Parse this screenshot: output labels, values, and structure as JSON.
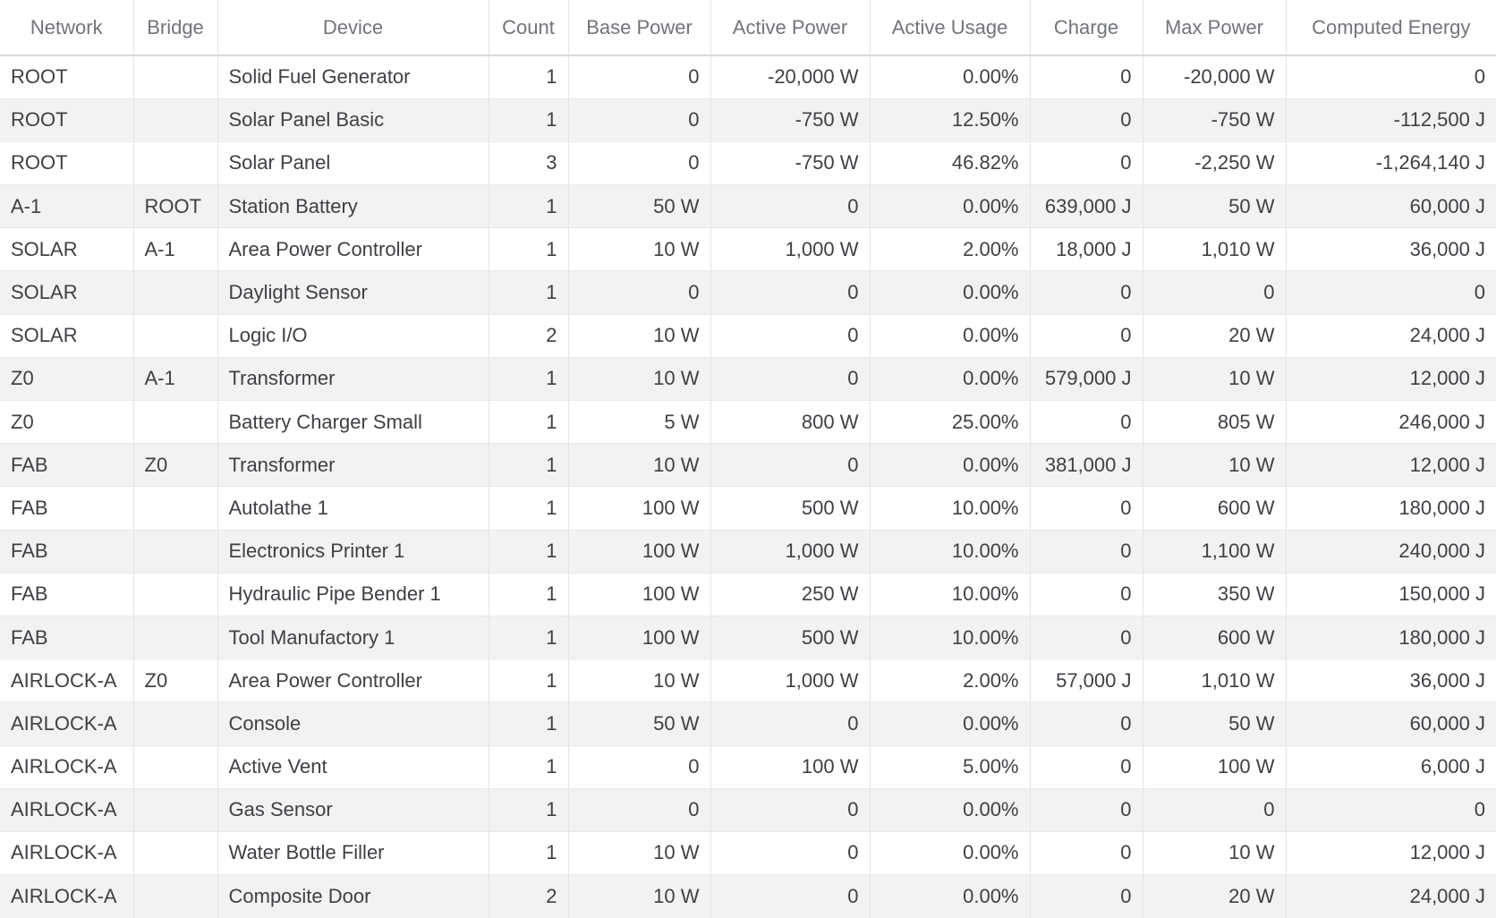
{
  "colors": {
    "stripe": "#f2f2f2",
    "divider": "#e4e4e4",
    "row_border": "#e9e9e9",
    "header_border": "#dadada",
    "header_text": "#71747b",
    "body_text": "#3e4045"
  },
  "table": {
    "columns": [
      {
        "key": "network",
        "label": "Network",
        "align": "left"
      },
      {
        "key": "bridge",
        "label": "Bridge",
        "align": "left"
      },
      {
        "key": "device",
        "label": "Device",
        "align": "left"
      },
      {
        "key": "count",
        "label": "Count",
        "align": "right"
      },
      {
        "key": "base_power",
        "label": "Base Power",
        "align": "right"
      },
      {
        "key": "active_power",
        "label": "Active Power",
        "align": "right"
      },
      {
        "key": "active_usage",
        "label": "Active Usage",
        "align": "right"
      },
      {
        "key": "charge",
        "label": "Charge",
        "align": "right"
      },
      {
        "key": "max_power",
        "label": "Max Power",
        "align": "right"
      },
      {
        "key": "computed_energy",
        "label": "Computed Energy",
        "align": "right"
      }
    ],
    "rows": [
      [
        "ROOT",
        "",
        "Solid Fuel Generator",
        "1",
        "0",
        "-20,000 W",
        "0.00%",
        "0",
        "-20,000 W",
        "0"
      ],
      [
        "ROOT",
        "",
        "Solar Panel Basic",
        "1",
        "0",
        "-750 W",
        "12.50%",
        "0",
        "-750 W",
        "-112,500 J"
      ],
      [
        "ROOT",
        "",
        "Solar Panel",
        "3",
        "0",
        "-750 W",
        "46.82%",
        "0",
        "-2,250 W",
        "-1,264,140 J"
      ],
      [
        "A-1",
        "ROOT",
        "Station Battery",
        "1",
        "50 W",
        "0",
        "0.00%",
        "639,000 J",
        "50 W",
        "60,000 J"
      ],
      [
        "SOLAR",
        "A-1",
        "Area Power Controller",
        "1",
        "10 W",
        "1,000 W",
        "2.00%",
        "18,000 J",
        "1,010 W",
        "36,000 J"
      ],
      [
        "SOLAR",
        "",
        "Daylight Sensor",
        "1",
        "0",
        "0",
        "0.00%",
        "0",
        "0",
        "0"
      ],
      [
        "SOLAR",
        "",
        "Logic I/O",
        "2",
        "10 W",
        "0",
        "0.00%",
        "0",
        "20 W",
        "24,000 J"
      ],
      [
        "Z0",
        "A-1",
        "Transformer",
        "1",
        "10 W",
        "0",
        "0.00%",
        "579,000 J",
        "10 W",
        "12,000 J"
      ],
      [
        "Z0",
        "",
        "Battery Charger Small",
        "1",
        "5 W",
        "800 W",
        "25.00%",
        "0",
        "805 W",
        "246,000 J"
      ],
      [
        "FAB",
        "Z0",
        "Transformer",
        "1",
        "10 W",
        "0",
        "0.00%",
        "381,000 J",
        "10 W",
        "12,000 J"
      ],
      [
        "FAB",
        "",
        "Autolathe 1",
        "1",
        "100 W",
        "500 W",
        "10.00%",
        "0",
        "600 W",
        "180,000 J"
      ],
      [
        "FAB",
        "",
        "Electronics Printer 1",
        "1",
        "100 W",
        "1,000 W",
        "10.00%",
        "0",
        "1,100 W",
        "240,000 J"
      ],
      [
        "FAB",
        "",
        "Hydraulic Pipe Bender 1",
        "1",
        "100 W",
        "250 W",
        "10.00%",
        "0",
        "350 W",
        "150,000 J"
      ],
      [
        "FAB",
        "",
        "Tool Manufactory 1",
        "1",
        "100 W",
        "500 W",
        "10.00%",
        "0",
        "600 W",
        "180,000 J"
      ],
      [
        "AIRLOCK-A",
        "Z0",
        "Area Power Controller",
        "1",
        "10 W",
        "1,000 W",
        "2.00%",
        "57,000 J",
        "1,010 W",
        "36,000 J"
      ],
      [
        "AIRLOCK-A",
        "",
        "Console",
        "1",
        "50 W",
        "0",
        "0.00%",
        "0",
        "50 W",
        "60,000 J"
      ],
      [
        "AIRLOCK-A",
        "",
        "Active Vent",
        "1",
        "0",
        "100 W",
        "5.00%",
        "0",
        "100 W",
        "6,000 J"
      ],
      [
        "AIRLOCK-A",
        "",
        "Gas Sensor",
        "1",
        "0",
        "0",
        "0.00%",
        "0",
        "0",
        "0"
      ],
      [
        "AIRLOCK-A",
        "",
        "Water Bottle Filler",
        "1",
        "10 W",
        "0",
        "0.00%",
        "0",
        "10 W",
        "12,000 J"
      ],
      [
        "AIRLOCK-A",
        "",
        "Composite Door",
        "2",
        "10 W",
        "0",
        "0.00%",
        "0",
        "20 W",
        "24,000 J"
      ]
    ]
  }
}
